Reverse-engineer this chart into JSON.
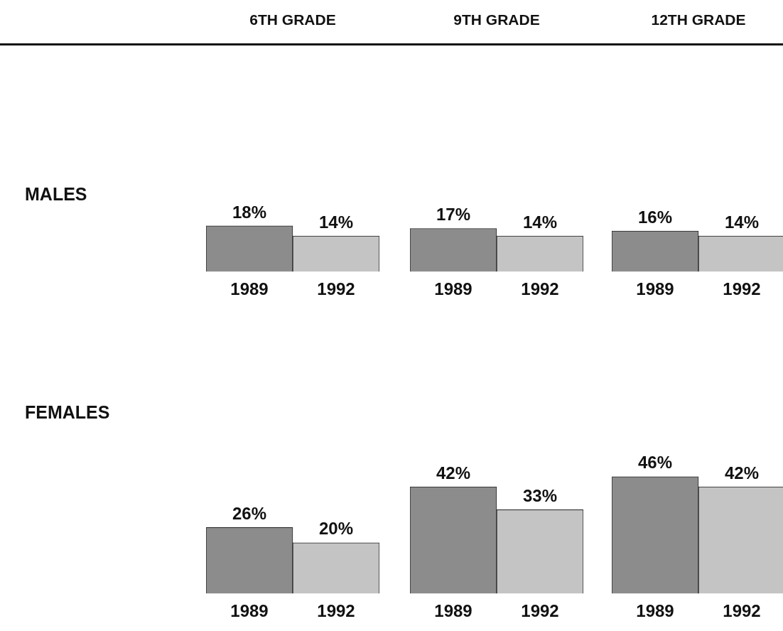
{
  "chart_data": [
    {
      "type": "bar",
      "title": "6TH GRADE",
      "ylabel": "MALES",
      "categories": [
        "1989",
        "1992"
      ],
      "values": [
        18,
        14
      ],
      "colors": [
        "#8c8c8c",
        "#c4c4c4"
      ],
      "value_labels": [
        "18%",
        "14%"
      ],
      "legend": false
    },
    {
      "type": "bar",
      "title": "9TH GRADE",
      "categories": [
        "1989",
        "1992"
      ],
      "values": [
        17,
        14
      ],
      "colors": [
        "#8c8c8c",
        "#c4c4c4"
      ],
      "value_labels": [
        "17%",
        "14%"
      ],
      "legend": false
    },
    {
      "type": "bar",
      "title": "12TH GRADE",
      "categories": [
        "1989",
        "1992"
      ],
      "values": [
        16,
        14
      ],
      "colors": [
        "#8c8c8c",
        "#c4c4c4"
      ],
      "value_labels": [
        "16%",
        "14%"
      ],
      "legend": false
    },
    {
      "type": "bar",
      "ylabel": "FEMALES",
      "categories": [
        "1989",
        "1992"
      ],
      "values": [
        26,
        20
      ],
      "colors": [
        "#8c8c8c",
        "#c4c4c4"
      ],
      "value_labels": [
        "26%",
        "20%"
      ],
      "legend": false
    },
    {
      "type": "bar",
      "categories": [
        "1989",
        "1992"
      ],
      "values": [
        42,
        33
      ],
      "colors": [
        "#8c8c8c",
        "#c4c4c4"
      ],
      "value_labels": [
        "42%",
        "33%"
      ],
      "legend": false
    },
    {
      "type": "bar",
      "categories": [
        "1989",
        "1992"
      ],
      "values": [
        46,
        42
      ],
      "colors": [
        "#8c8c8c",
        "#c4c4c4"
      ],
      "value_labels": [
        "46%",
        "42%"
      ],
      "legend": false
    }
  ]
}
